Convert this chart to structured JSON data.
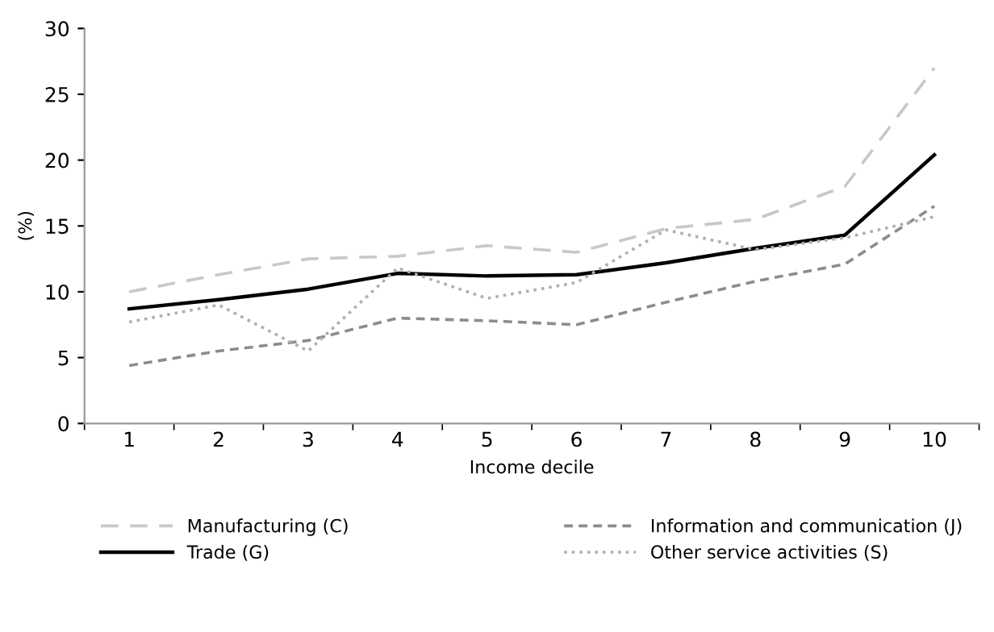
{
  "chart_data": {
    "type": "line",
    "xlabel": "Income decile",
    "ylabel": "(%)",
    "categories": [
      "1",
      "2",
      "3",
      "4",
      "5",
      "6",
      "7",
      "8",
      "9",
      "10"
    ],
    "series": [
      {
        "name": "Manufacturing (C)",
        "color": "#c8c8c8",
        "line_style": "dashed",
        "values": [
          10.0,
          11.3,
          12.5,
          12.7,
          13.5,
          13.0,
          14.8,
          15.5,
          18.0,
          27.0
        ]
      },
      {
        "name": "Trade (G)",
        "color": "#000000",
        "line_style": "solid",
        "values": [
          8.7,
          9.4,
          10.2,
          11.4,
          11.2,
          11.3,
          12.2,
          13.3,
          14.3,
          20.4
        ]
      },
      {
        "name": "Information and communication (J)",
        "color": "#8c8c8c",
        "line_style": "dashed",
        "values": [
          4.4,
          5.5,
          6.3,
          8.0,
          7.8,
          7.5,
          9.2,
          10.8,
          12.1,
          16.5
        ]
      },
      {
        "name": "Other service activities (S)",
        "color": "#a8b4a8",
        "line_style": "dotted",
        "values": [
          7.7,
          9.0,
          5.5,
          11.8,
          9.5,
          10.7,
          14.7,
          13.2,
          14.1,
          15.7
        ]
      }
    ],
    "ylim": [
      0,
      30
    ],
    "yticks": [
      0,
      5,
      10,
      15,
      20,
      25,
      30
    ],
    "grid": false,
    "legend": "bottom",
    "marker": "none"
  }
}
